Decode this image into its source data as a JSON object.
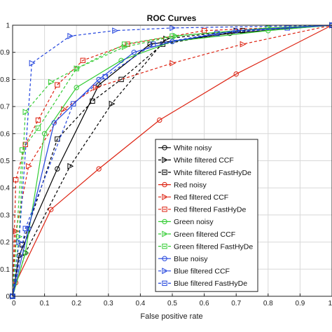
{
  "chart_data": {
    "type": "line",
    "title": "ROC Curves",
    "xlabel": "False positive rate",
    "ylabel": "",
    "xlim": [
      0,
      1
    ],
    "ylim": [
      0,
      1
    ],
    "grid": true,
    "legend_position": "lower-right",
    "x_ticks": [
      0,
      0.1,
      0.2,
      0.3,
      0.4,
      0.5,
      0.6,
      0.7,
      0.8,
      0.9,
      1
    ],
    "x_tick_labels": [
      "0",
      "0.1",
      "0.2",
      "0.3",
      "0.4",
      "0.5",
      "0.6",
      "0.7",
      "0.8",
      "0.9",
      "1"
    ],
    "y_ticks": [
      0,
      0.1,
      0.2,
      0.3,
      0.4,
      0.5,
      0.6,
      0.7,
      0.8,
      0.9,
      1
    ],
    "y_tick_labels": [
      "0",
      "0.1",
      "0.2",
      "0.3",
      "0.4",
      "0.5",
      "0.6",
      "0.7",
      "0.8",
      "0.9",
      "1"
    ],
    "series": [
      {
        "name": "White noisy",
        "color": "#000000",
        "dash": "solid",
        "marker": "circle",
        "points": [
          [
            0,
            0
          ],
          [
            0.02,
            0.15
          ],
          [
            0.14,
            0.47
          ],
          [
            0.27,
            0.78
          ],
          [
            0.43,
            0.93
          ],
          [
            0.68,
            0.97
          ],
          [
            1,
            1
          ]
        ]
      },
      {
        "name": "White filtered CCF",
        "color": "#000000",
        "dash": "dashed",
        "marker": "triangle-right",
        "points": [
          [
            0,
            0
          ],
          [
            0.04,
            0.16
          ],
          [
            0.18,
            0.48
          ],
          [
            0.31,
            0.71
          ],
          [
            0.48,
            0.95
          ],
          [
            0.7,
            0.98
          ],
          [
            1,
            1
          ]
        ]
      },
      {
        "name": "White filtered FastHyDe",
        "color": "#000000",
        "dash": "dashed",
        "marker": "square",
        "points": [
          [
            0,
            0
          ],
          [
            0.03,
            0.19
          ],
          [
            0.14,
            0.58
          ],
          [
            0.25,
            0.72
          ],
          [
            0.34,
            0.8
          ],
          [
            0.47,
            0.93
          ],
          [
            0.72,
            0.98
          ],
          [
            1,
            1
          ]
        ]
      },
      {
        "name": "Red noisy",
        "color": "#dd2211",
        "dash": "solid",
        "marker": "circle",
        "points": [
          [
            0,
            0
          ],
          [
            0.01,
            0.05
          ],
          [
            0.12,
            0.32
          ],
          [
            0.27,
            0.47
          ],
          [
            0.46,
            0.65
          ],
          [
            0.7,
            0.82
          ],
          [
            1,
            1
          ]
        ]
      },
      {
        "name": "Red filtered CCF",
        "color": "#dd2211",
        "dash": "dashed",
        "marker": "triangle-right",
        "points": [
          [
            0,
            0
          ],
          [
            0.01,
            0.24
          ],
          [
            0.05,
            0.48
          ],
          [
            0.16,
            0.69
          ],
          [
            0.26,
            0.77
          ],
          [
            0.5,
            0.86
          ],
          [
            0.72,
            0.93
          ],
          [
            1,
            1
          ]
        ]
      },
      {
        "name": "Red filtered FastHyDe",
        "color": "#dd2211",
        "dash": "dashed",
        "marker": "square",
        "points": [
          [
            0,
            0
          ],
          [
            0.01,
            0.43
          ],
          [
            0.04,
            0.56
          ],
          [
            0.08,
            0.65
          ],
          [
            0.14,
            0.78
          ],
          [
            0.22,
            0.87
          ],
          [
            0.36,
            0.93
          ],
          [
            0.6,
            0.98
          ],
          [
            1,
            1
          ]
        ]
      },
      {
        "name": "Green noisy",
        "color": "#33cc33",
        "dash": "solid",
        "marker": "circle",
        "points": [
          [
            0,
            0
          ],
          [
            0.04,
            0.16
          ],
          [
            0.1,
            0.6
          ],
          [
            0.2,
            0.77
          ],
          [
            0.34,
            0.87
          ],
          [
            0.5,
            0.94
          ],
          [
            0.8,
            0.98
          ],
          [
            1,
            1
          ]
        ]
      },
      {
        "name": "Green filtered CCF",
        "color": "#33cc33",
        "dash": "dashed",
        "marker": "triangle-right",
        "points": [
          [
            0,
            0
          ],
          [
            0.02,
            0.22
          ],
          [
            0.04,
            0.68
          ],
          [
            0.12,
            0.79
          ],
          [
            0.2,
            0.84
          ],
          [
            0.35,
            0.92
          ],
          [
            0.51,
            0.96
          ],
          [
            0.8,
            0.99
          ],
          [
            1,
            1
          ]
        ]
      },
      {
        "name": "Green filtered FastHyDe",
        "color": "#33cc33",
        "dash": "dashed",
        "marker": "square",
        "points": [
          [
            0,
            0
          ],
          [
            0.03,
            0.54
          ],
          [
            0.08,
            0.62
          ],
          [
            0.2,
            0.84
          ],
          [
            0.35,
            0.93
          ],
          [
            0.5,
            0.96
          ],
          [
            0.8,
            0.99
          ],
          [
            1,
            1
          ]
        ]
      },
      {
        "name": "Blue noisy",
        "color": "#2244dd",
        "dash": "solid",
        "marker": "circle",
        "points": [
          [
            0,
            0
          ],
          [
            0.05,
            0.25
          ],
          [
            0.13,
            0.64
          ],
          [
            0.27,
            0.8
          ],
          [
            0.38,
            0.9
          ],
          [
            0.5,
            0.94
          ],
          [
            0.7,
            0.98
          ],
          [
            1,
            1
          ]
        ]
      },
      {
        "name": "Blue filtered CCF",
        "color": "#2244dd",
        "dash": "dashed",
        "marker": "triangle-right",
        "points": [
          [
            0,
            0
          ],
          [
            0.02,
            0.2
          ],
          [
            0.06,
            0.86
          ],
          [
            0.18,
            0.96
          ],
          [
            0.32,
            0.98
          ],
          [
            0.5,
            0.99
          ],
          [
            1,
            1
          ]
        ]
      },
      {
        "name": "Blue filtered FastHyDe",
        "color": "#2244dd",
        "dash": "dashed",
        "marker": "square",
        "points": [
          [
            0,
            0
          ],
          [
            0.04,
            0.25
          ],
          [
            0.19,
            0.71
          ],
          [
            0.29,
            0.81
          ],
          [
            0.44,
            0.93
          ],
          [
            0.64,
            0.97
          ],
          [
            0.86,
            0.99
          ],
          [
            1,
            1
          ]
        ]
      }
    ]
  }
}
